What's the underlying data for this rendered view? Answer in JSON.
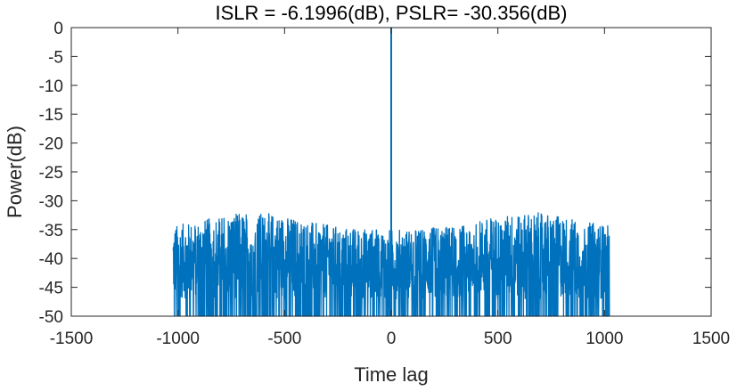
{
  "chart_data": {
    "type": "line",
    "title": "ISLR =    -6.1996(dB), PSLR=   -30.356(dB)",
    "xlabel": "Time lag",
    "ylabel": "Power(dB)",
    "xlim": [
      -1500,
      1500
    ],
    "ylim": [
      -50,
      0
    ],
    "xticks": [
      -1500,
      -1000,
      -500,
      0,
      500,
      1000,
      1500
    ],
    "yticks": [
      0,
      -5,
      -10,
      -15,
      -20,
      -25,
      -30,
      -35,
      -40,
      -45,
      -50
    ],
    "xtick_labels": [
      "-1500",
      "-1000",
      "-500",
      "0",
      "500",
      "1000",
      "1500"
    ],
    "ytick_labels": [
      "0",
      "-5",
      "-10",
      "-15",
      "-20",
      "-25",
      "-30",
      "-35",
      "-40",
      "-45",
      "-50"
    ],
    "grid": false,
    "series": [
      {
        "color": "#0072BD",
        "lag_range": [
          -1023,
          1023
        ],
        "peak": {
          "x": 0,
          "y": 0
        },
        "sidelobe_floor": -50,
        "sidelobe_typical": [
          -47,
          -35
        ],
        "sidelobe_max": -30.356,
        "envelope_peaks": [
          -650,
          650
        ]
      }
    ]
  }
}
